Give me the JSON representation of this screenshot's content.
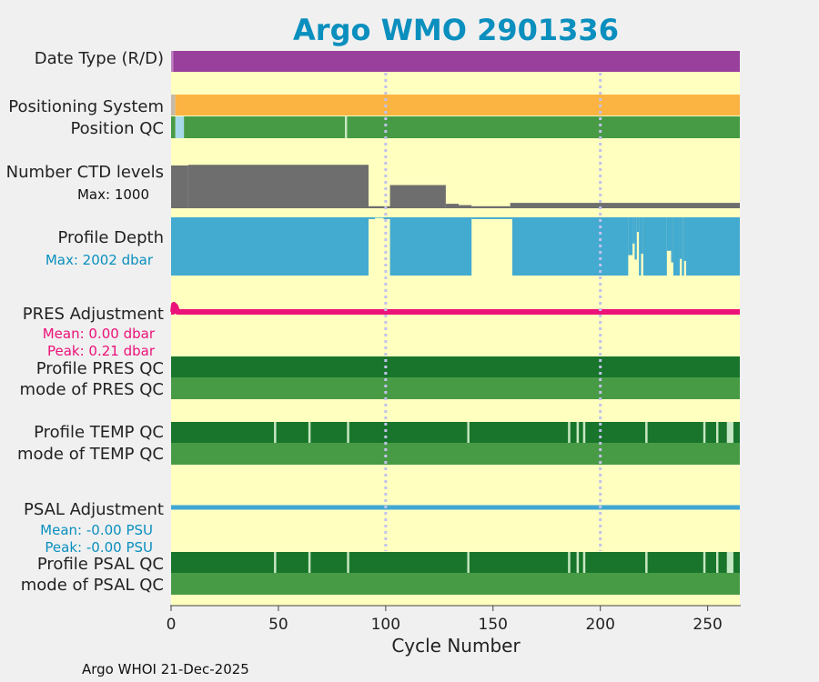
{
  "chart_data": {
    "type": "bar",
    "title": "Argo WMO 2901336",
    "xlabel": "Cycle Number",
    "xlim": [
      0,
      265
    ],
    "xticks": [
      0,
      50,
      100,
      150,
      200,
      250
    ],
    "xtick_labels": [
      "0",
      "50",
      "100",
      "150",
      "200",
      "250"
    ],
    "vlines": [
      100,
      200
    ],
    "footer": "Argo WHOI 21-Dec-2025",
    "colors": {
      "background": "#ffffc0",
      "title": "#0a8fbe",
      "realtime": "#98409c",
      "positioning": "#fbb441",
      "qc_good": "#489b45",
      "qc_dark": "#18752b",
      "qc_probable": "#c6e7c4",
      "qc_light_blue": "#a8d9ea",
      "ctd": "#6e6e6e",
      "depth": "#43aad0",
      "pres": "#eb1279",
      "psal": "#42a7d2",
      "vline": "#c2c2ee"
    },
    "rows": {
      "date_type": {
        "label": "Date Type (R/D)",
        "segments": [
          {
            "x0": 0,
            "x1": 1,
            "color": "#c080c4"
          },
          {
            "x0": 1,
            "x1": 265,
            "color": "#98409c"
          }
        ]
      },
      "positioning": {
        "label": "Positioning System",
        "segments": [
          {
            "x0": 0,
            "x1": 2,
            "color": "#c6b9a6"
          },
          {
            "x0": 2,
            "x1": 265,
            "color": "#fbb441"
          }
        ]
      },
      "position_qc": {
        "label": "Position QC",
        "segments": [
          {
            "x0": 0,
            "x1": 2,
            "color": "#489b45"
          },
          {
            "x0": 2,
            "x1": 6,
            "color": "#a8d9ea"
          },
          {
            "x0": 6,
            "x1": 81,
            "color": "#489b45"
          },
          {
            "x0": 81,
            "x1": 82,
            "color": "#c6e7c4"
          },
          {
            "x0": 82,
            "x1": 265,
            "color": "#489b45"
          }
        ]
      },
      "ctd_levels": {
        "label": "Number CTD levels",
        "max_label": "Max: 1000",
        "max": 1000,
        "bars": [
          {
            "x0": 0,
            "x1": 8,
            "value": 960
          },
          {
            "x0": 8,
            "x1": 92,
            "value": 975
          },
          {
            "x0": 92,
            "x1": 102,
            "value": 45
          },
          {
            "x0": 102,
            "x1": 128,
            "value": 520
          },
          {
            "x0": 128,
            "x1": 134,
            "value": 100
          },
          {
            "x0": 134,
            "x1": 140,
            "value": 70
          },
          {
            "x0": 140,
            "x1": 158,
            "value": 45
          },
          {
            "x0": 158,
            "x1": 265,
            "value": 120
          }
        ]
      },
      "profile_depth": {
        "label": "Profile Depth",
        "max_label": "Max: 2002 dbar",
        "max": 2002,
        "bars": [
          {
            "x0": 0,
            "x1": 92,
            "value": 2002
          },
          {
            "x0": 92,
            "x1": 95,
            "value": 60
          },
          {
            "x0": 95,
            "x1": 99,
            "value": 20
          },
          {
            "x0": 99,
            "x1": 102,
            "value": 60
          },
          {
            "x0": 102,
            "x1": 140,
            "value": 2002
          },
          {
            "x0": 140,
            "x1": 159,
            "value": 60
          },
          {
            "x0": 159,
            "x1": 213,
            "value": 2002
          },
          {
            "x0": 213,
            "x1": 215,
            "value": 1300
          },
          {
            "x0": 215,
            "x1": 216,
            "value": 900
          },
          {
            "x0": 216,
            "x1": 217,
            "value": 1450
          },
          {
            "x0": 217,
            "x1": 218,
            "value": 500
          },
          {
            "x0": 218,
            "x1": 219,
            "value": 2002
          },
          {
            "x0": 219,
            "x1": 220,
            "value": 1250
          },
          {
            "x0": 220,
            "x1": 231,
            "value": 2002
          },
          {
            "x0": 231,
            "x1": 233,
            "value": 1150
          },
          {
            "x0": 233,
            "x1": 234,
            "value": 1550
          },
          {
            "x0": 234,
            "x1": 237,
            "value": 2002
          },
          {
            "x0": 237,
            "x1": 238,
            "value": 1430
          },
          {
            "x0": 238,
            "x1": 239,
            "value": 2002
          },
          {
            "x0": 239,
            "x1": 240,
            "value": 1500
          },
          {
            "x0": 240,
            "x1": 265,
            "value": 2002
          }
        ]
      },
      "pres_adjustment": {
        "label": "PRES Adjustment",
        "mean_label": "Mean: 0.00 dbar",
        "peak_label": "Peak: 0.21 dbar",
        "mean": 0.0,
        "peak": 0.21
      },
      "profile_pres_qc": {
        "label": "Profile PRES QC",
        "segments": [
          {
            "x0": 0,
            "x1": 265,
            "color": "#18752b"
          }
        ]
      },
      "mode_pres_qc": {
        "label": "mode of PRES QC",
        "segments": [
          {
            "x0": 0,
            "x1": 265,
            "color": "#489b45"
          }
        ]
      },
      "profile_temp_qc": {
        "label": "Profile TEMP QC",
        "segments": [
          {
            "x0": 0,
            "x1": 48,
            "color": "#18752b"
          },
          {
            "x0": 48,
            "x1": 49,
            "color": "#c6e7c4"
          },
          {
            "x0": 49,
            "x1": 64,
            "color": "#18752b"
          },
          {
            "x0": 64,
            "x1": 65,
            "color": "#c6e7c4"
          },
          {
            "x0": 65,
            "x1": 82,
            "color": "#18752b"
          },
          {
            "x0": 82,
            "x1": 83,
            "color": "#c6e7c4"
          },
          {
            "x0": 83,
            "x1": 138,
            "color": "#18752b"
          },
          {
            "x0": 138,
            "x1": 139,
            "color": "#c6e7c4"
          },
          {
            "x0": 139,
            "x1": 185,
            "color": "#18752b"
          },
          {
            "x0": 185,
            "x1": 186,
            "color": "#c6e7c4"
          },
          {
            "x0": 186,
            "x1": 189,
            "color": "#18752b"
          },
          {
            "x0": 189,
            "x1": 190,
            "color": "#c6e7c4"
          },
          {
            "x0": 190,
            "x1": 192,
            "color": "#18752b"
          },
          {
            "x0": 192,
            "x1": 193,
            "color": "#c6e7c4"
          },
          {
            "x0": 193,
            "x1": 221,
            "color": "#18752b"
          },
          {
            "x0": 221,
            "x1": 222,
            "color": "#c6e7c4"
          },
          {
            "x0": 222,
            "x1": 248,
            "color": "#18752b"
          },
          {
            "x0": 248,
            "x1": 249,
            "color": "#c6e7c4"
          },
          {
            "x0": 249,
            "x1": 254,
            "color": "#18752b"
          },
          {
            "x0": 254,
            "x1": 255,
            "color": "#c6e7c4"
          },
          {
            "x0": 255,
            "x1": 259,
            "color": "#18752b"
          },
          {
            "x0": 259,
            "x1": 262,
            "color": "#c6e7c4"
          },
          {
            "x0": 262,
            "x1": 265,
            "color": "#18752b"
          }
        ]
      },
      "mode_temp_qc": {
        "label": "mode of TEMP QC",
        "segments": [
          {
            "x0": 0,
            "x1": 265,
            "color": "#489b45"
          }
        ]
      },
      "psal_adjustment": {
        "label": "PSAL Adjustment",
        "mean_label": "Mean: -0.00 PSU",
        "peak_label": "Peak: -0.00 PSU",
        "mean": -0.0,
        "peak": -0.0
      },
      "profile_psal_qc": {
        "label": "Profile PSAL QC",
        "segments": [
          {
            "x0": 0,
            "x1": 48,
            "color": "#18752b"
          },
          {
            "x0": 48,
            "x1": 49,
            "color": "#c6e7c4"
          },
          {
            "x0": 49,
            "x1": 64,
            "color": "#18752b"
          },
          {
            "x0": 64,
            "x1": 65,
            "color": "#c6e7c4"
          },
          {
            "x0": 65,
            "x1": 82,
            "color": "#18752b"
          },
          {
            "x0": 82,
            "x1": 83,
            "color": "#c6e7c4"
          },
          {
            "x0": 83,
            "x1": 138,
            "color": "#18752b"
          },
          {
            "x0": 138,
            "x1": 139,
            "color": "#c6e7c4"
          },
          {
            "x0": 139,
            "x1": 185,
            "color": "#18752b"
          },
          {
            "x0": 185,
            "x1": 186,
            "color": "#c6e7c4"
          },
          {
            "x0": 186,
            "x1": 189,
            "color": "#18752b"
          },
          {
            "x0": 189,
            "x1": 190,
            "color": "#c6e7c4"
          },
          {
            "x0": 190,
            "x1": 192,
            "color": "#18752b"
          },
          {
            "x0": 192,
            "x1": 193,
            "color": "#c6e7c4"
          },
          {
            "x0": 193,
            "x1": 221,
            "color": "#18752b"
          },
          {
            "x0": 221,
            "x1": 222,
            "color": "#c6e7c4"
          },
          {
            "x0": 222,
            "x1": 248,
            "color": "#18752b"
          },
          {
            "x0": 248,
            "x1": 249,
            "color": "#c6e7c4"
          },
          {
            "x0": 249,
            "x1": 254,
            "color": "#18752b"
          },
          {
            "x0": 254,
            "x1": 255,
            "color": "#c6e7c4"
          },
          {
            "x0": 255,
            "x1": 259,
            "color": "#18752b"
          },
          {
            "x0": 259,
            "x1": 262,
            "color": "#c6e7c4"
          },
          {
            "x0": 262,
            "x1": 265,
            "color": "#18752b"
          }
        ]
      },
      "mode_psal_qc": {
        "label": "mode of PSAL QC",
        "segments": [
          {
            "x0": 0,
            "x1": 265,
            "color": "#489b45"
          }
        ]
      }
    }
  }
}
